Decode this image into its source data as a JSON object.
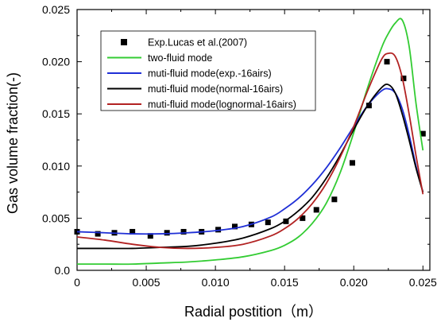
{
  "chart_data": {
    "type": "line",
    "title": "",
    "xlabel": "Radial postition（m）",
    "ylabel": "Gas volume fraction(-)",
    "xlim": [
      0,
      0.0255
    ],
    "ylim": [
      0,
      0.025
    ],
    "xticks": [
      "0",
      "0.005",
      "0.010",
      "0.015",
      "0.020",
      "0.025"
    ],
    "xtick_values": [
      0,
      0.005,
      0.01,
      0.015,
      0.02,
      0.025
    ],
    "yticks": [
      "0.0",
      "0.005",
      "0.010",
      "0.015",
      "0.020",
      "0.025"
    ],
    "ytick_values": [
      0,
      0.005,
      0.01,
      0.015,
      0.02,
      0.025
    ],
    "legend_position": "top-left",
    "grid": false,
    "series": [
      {
        "name": "Exp.Lucas et al.(2007)",
        "kind": "scatter",
        "color": "#000000",
        "x": [
          0.0,
          0.0015,
          0.0027,
          0.004,
          0.0053,
          0.0065,
          0.0077,
          0.009,
          0.0102,
          0.0114,
          0.0126,
          0.0138,
          0.0151,
          0.0163,
          0.0173,
          0.0186,
          0.0199,
          0.0211,
          0.0224,
          0.0236,
          0.025
        ],
        "y": [
          0.0037,
          0.0035,
          0.0036,
          0.0037,
          0.0033,
          0.0036,
          0.0037,
          0.0037,
          0.0039,
          0.0042,
          0.0044,
          0.0046,
          0.0047,
          0.005,
          0.0058,
          0.0068,
          0.0103,
          0.0158,
          0.02,
          0.0184,
          0.0131
        ]
      },
      {
        "name": "two-fluid mode",
        "kind": "line",
        "color": "#33cc33",
        "x": [
          0.0,
          0.002,
          0.004,
          0.006,
          0.008,
          0.01,
          0.012,
          0.014,
          0.015,
          0.016,
          0.017,
          0.018,
          0.019,
          0.02,
          0.021,
          0.022,
          0.0225,
          0.023,
          0.0235,
          0.024,
          0.0245,
          0.025
        ],
        "y": [
          0.0006,
          0.0006,
          0.0006,
          0.0007,
          0.0008,
          0.001,
          0.0013,
          0.0019,
          0.0024,
          0.0032,
          0.0045,
          0.0064,
          0.0093,
          0.0132,
          0.0175,
          0.0213,
          0.0227,
          0.0237,
          0.024,
          0.0215,
          0.016,
          0.0115
        ]
      },
      {
        "name": "muti-fluid mode(exp.-16airs)",
        "kind": "line",
        "color": "#1f2fd6",
        "x": [
          0.0,
          0.002,
          0.004,
          0.006,
          0.008,
          0.01,
          0.012,
          0.014,
          0.015,
          0.016,
          0.017,
          0.018,
          0.019,
          0.02,
          0.021,
          0.022,
          0.0225,
          0.023,
          0.0235,
          0.024,
          0.0245,
          0.025
        ],
        "y": [
          0.0037,
          0.0036,
          0.0035,
          0.0035,
          0.0036,
          0.0038,
          0.0042,
          0.0051,
          0.0059,
          0.0069,
          0.0082,
          0.0098,
          0.0117,
          0.0138,
          0.0158,
          0.0172,
          0.0174,
          0.017,
          0.0155,
          0.013,
          0.01,
          0.0075
        ]
      },
      {
        "name": "muti-fluid mode(normal-16airs)",
        "kind": "line",
        "color": "#000000",
        "x": [
          0.0,
          0.002,
          0.004,
          0.006,
          0.008,
          0.01,
          0.012,
          0.014,
          0.015,
          0.016,
          0.017,
          0.018,
          0.019,
          0.02,
          0.021,
          0.022,
          0.0225,
          0.023,
          0.0235,
          0.024,
          0.0245,
          0.025
        ],
        "y": [
          0.0021,
          0.0021,
          0.0021,
          0.0022,
          0.0023,
          0.0026,
          0.0031,
          0.004,
          0.0047,
          0.0057,
          0.007,
          0.0088,
          0.011,
          0.0135,
          0.0158,
          0.0175,
          0.0178,
          0.017,
          0.015,
          0.0125,
          0.0098,
          0.0075
        ]
      },
      {
        "name": "muti-fluid mode(lognormal-16airs)",
        "kind": "line",
        "color": "#b22222",
        "x": [
          0.0,
          0.002,
          0.004,
          0.006,
          0.008,
          0.01,
          0.012,
          0.014,
          0.015,
          0.016,
          0.017,
          0.018,
          0.019,
          0.02,
          0.021,
          0.022,
          0.0225,
          0.023,
          0.0235,
          0.024,
          0.0245,
          0.025
        ],
        "y": [
          0.0032,
          0.0029,
          0.0025,
          0.0022,
          0.0021,
          0.0022,
          0.0025,
          0.0033,
          0.004,
          0.005,
          0.0064,
          0.0083,
          0.0108,
          0.0138,
          0.0172,
          0.0202,
          0.0208,
          0.0205,
          0.0185,
          0.015,
          0.011,
          0.0073
        ]
      }
    ]
  }
}
